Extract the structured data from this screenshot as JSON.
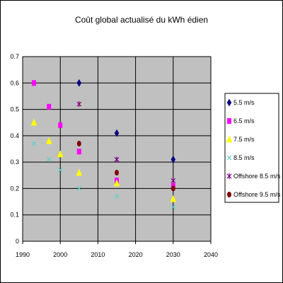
{
  "chart_data": {
    "type": "scatter",
    "title": "Coût global actualisé du kWh édien",
    "xlabel": "",
    "ylabel": "",
    "xlim": [
      1990,
      2040
    ],
    "ylim": [
      0,
      0.7
    ],
    "xticks": [
      "1990",
      "2000",
      "2010",
      "2020",
      "2030",
      "2040"
    ],
    "yticks": [
      "0",
      "0.1",
      "0.2",
      "0.3",
      "0.4",
      "0.5",
      "0.6",
      "0.7"
    ],
    "grid": true,
    "legend_position": "right",
    "background": "#c0c0c0",
    "series": [
      {
        "name": "5.5 m/s",
        "marker": "diamond",
        "color": "#000080",
        "points": [
          [
            2005,
            0.6
          ],
          [
            2015,
            0.41
          ],
          [
            2030,
            0.31
          ]
        ]
      },
      {
        "name": "6.5 m/s",
        "marker": "square",
        "color": "#ff00ff",
        "points": [
          [
            1993,
            0.6
          ],
          [
            1997,
            0.51
          ],
          [
            2000,
            0.44
          ],
          [
            2005,
            0.34
          ],
          [
            2015,
            0.23
          ],
          [
            2030,
            0.21
          ]
        ]
      },
      {
        "name": "7.5 m/s",
        "marker": "triangle",
        "color": "#ffff00",
        "points": [
          [
            1993,
            0.45
          ],
          [
            1997,
            0.38
          ],
          [
            2000,
            0.33
          ],
          [
            2005,
            0.26
          ],
          [
            2015,
            0.22
          ],
          [
            2030,
            0.16
          ]
        ]
      },
      {
        "name": "8.5 m/s",
        "marker": "x",
        "color": "#66cccc",
        "points": [
          [
            1993,
            0.37
          ],
          [
            1997,
            0.31
          ],
          [
            2000,
            0.27
          ],
          [
            2005,
            0.2
          ],
          [
            2015,
            0.17
          ],
          [
            2030,
            0.13
          ]
        ]
      },
      {
        "name": "Offshore 8.5 m/s",
        "marker": "star",
        "color": "#800080",
        "points": [
          [
            2005,
            0.52
          ],
          [
            2015,
            0.31
          ],
          [
            2030,
            0.23
          ]
        ]
      },
      {
        "name": "Offshore 9.5 m/s",
        "marker": "circle",
        "color": "#800000",
        "points": [
          [
            2005,
            0.37
          ],
          [
            2015,
            0.26
          ],
          [
            2030,
            0.2
          ]
        ]
      }
    ]
  }
}
